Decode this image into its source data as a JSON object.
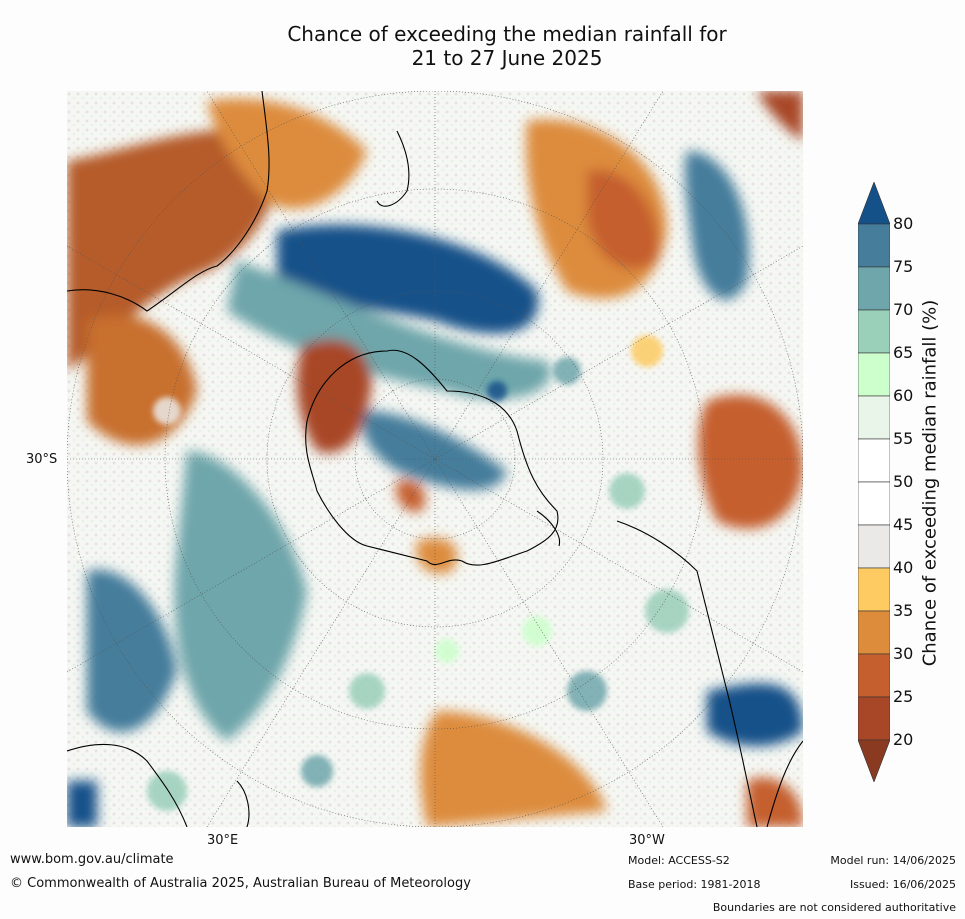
{
  "title_line1": "Chance of exceeding the median rainfall for",
  "title_line2": "21 to 27 June 2025",
  "lat_label": "30°S",
  "lon_labels": [
    "30°E",
    "30°W"
  ],
  "colorbar": {
    "title": "Chance of exceeding median rainfall (%)",
    "ticks": [
      "80",
      "75",
      "70",
      "65",
      "60",
      "55",
      "50",
      "45",
      "40",
      "35",
      "30",
      "25",
      "20"
    ],
    "colors": [
      "#155189",
      "#457d9b",
      "#6ea6ab",
      "#9acfb9",
      "#ccffcc",
      "#eaf5ea",
      "#ffffff",
      "#ffffff",
      "#ebe9e7",
      "#fdcb62",
      "#dd8c3c",
      "#c55f2e",
      "#a84628",
      "#8a3a20"
    ]
  },
  "footer": {
    "url": "www.bom.gov.au/climate",
    "copyright": "© Commonwealth of Australia 2025, Australian Bureau of Meteorology",
    "model": "Model: ACCESS-S2",
    "base_period": "Base period: 1981-2018",
    "model_run": "Model run: 14/06/2025",
    "issued": "Issued: 16/06/2025",
    "disclaimer": "Boundaries are not considered authoritative"
  }
}
